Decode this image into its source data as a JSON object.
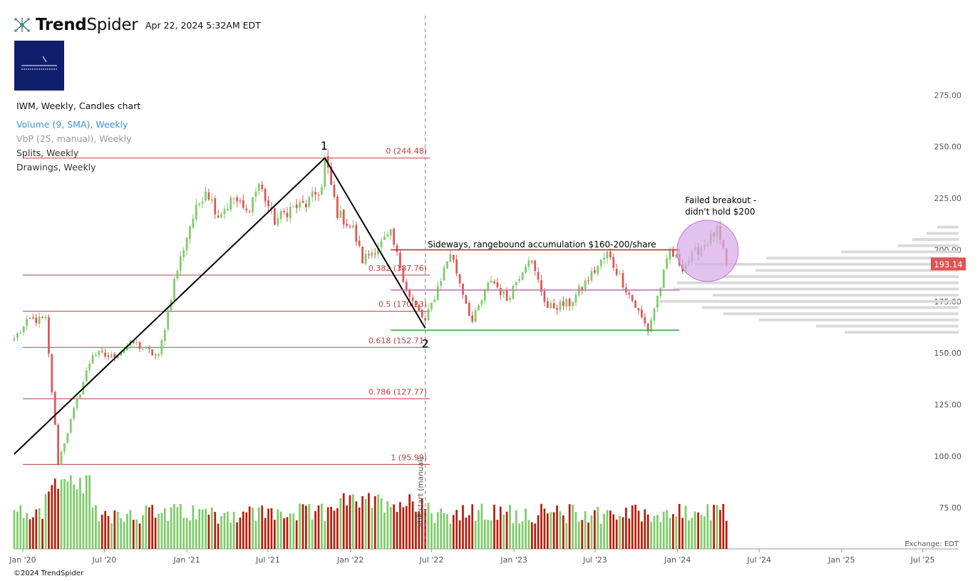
{
  "header": {
    "brand_bold": "Trend",
    "brand_light": "Spider",
    "timestamp": "Apr 22, 2024 5:32AM EDT"
  },
  "legend": [
    {
      "text": "IWM, Weekly, Candles chart",
      "color": "#111111"
    },
    {
      "text": "Volume (9, SMA), Weekly",
      "color": "#3f8fd6"
    },
    {
      "text": "VbP (25, manual), Weekly",
      "color": "#999999"
    },
    {
      "text": "Splits, Weekly",
      "color": "#333333"
    },
    {
      "text": "Drawings, Weekly",
      "color": "#333333"
    }
  ],
  "footer": {
    "copyright": "©2024 TrendSpider",
    "exchange": "Exchange: EDT"
  },
  "colors": {
    "up": "#7ecb6a",
    "down": "#e05454",
    "volume_up": "#7ecb6a",
    "volume_down": "#b51e0a",
    "fib_line": "#b04040",
    "last_price_badge": "#e05454",
    "vbp_bar": "#d9d9d9",
    "resistance": "#b83232",
    "midline": "#c471c4",
    "support": "#4aa84a",
    "highlight_circle": "#d8a8e8",
    "logo_box": "#0f1f6e"
  },
  "chart_data": {
    "type": "candlestick",
    "ticker": "IWM",
    "timeframe": "Weekly",
    "x_ticks": [
      "Jan '20",
      "Jul '20",
      "Jan '21",
      "Jul '21",
      "Jan '22",
      "Jul '22",
      "Jan '23",
      "Jul '23",
      "Jan '24",
      "Jul '24",
      "Jan '25",
      "Jul '25"
    ],
    "y_ticks": [
      "75.00",
      "100.00",
      "125.00",
      "150.00",
      "175.00",
      "200.00",
      "225.00",
      "250.00",
      "275.00"
    ],
    "ylim": [
      55,
      290
    ],
    "last_price": 193.14,
    "last_price_label": "193.14",
    "anchors": [
      {
        "date": "2019-12-13",
        "price": 157
      },
      {
        "date": "2020-01-17",
        "price": 166
      },
      {
        "date": "2020-02-21",
        "price": 166
      },
      {
        "date": "2020-03-20",
        "price": 97
      },
      {
        "date": "2020-04-24",
        "price": 122
      },
      {
        "date": "2020-06-05",
        "price": 150
      },
      {
        "date": "2020-07-17",
        "price": 148
      },
      {
        "date": "2020-09-04",
        "price": 155
      },
      {
        "date": "2020-10-30",
        "price": 148
      },
      {
        "date": "2020-12-04",
        "price": 185
      },
      {
        "date": "2021-01-08",
        "price": 212
      },
      {
        "date": "2021-02-12",
        "price": 230
      },
      {
        "date": "2021-03-12",
        "price": 217
      },
      {
        "date": "2021-04-16",
        "price": 225
      },
      {
        "date": "2021-05-14",
        "price": 218
      },
      {
        "date": "2021-06-11",
        "price": 232
      },
      {
        "date": "2021-07-16",
        "price": 214
      },
      {
        "date": "2021-08-20",
        "price": 220
      },
      {
        "date": "2021-09-24",
        "price": 222
      },
      {
        "date": "2021-10-29",
        "price": 230
      },
      {
        "date": "2021-11-05",
        "price": 244
      },
      {
        "date": "2021-12-03",
        "price": 218
      },
      {
        "date": "2022-01-07",
        "price": 210
      },
      {
        "date": "2022-01-28",
        "price": 195
      },
      {
        "date": "2022-03-04",
        "price": 202
      },
      {
        "date": "2022-04-01",
        "price": 207
      },
      {
        "date": "2022-05-13",
        "price": 177
      },
      {
        "date": "2022-06-17",
        "price": 165
      },
      {
        "date": "2022-08-12",
        "price": 199
      },
      {
        "date": "2022-09-30",
        "price": 165
      },
      {
        "date": "2022-11-11",
        "price": 186
      },
      {
        "date": "2022-12-16",
        "price": 176
      },
      {
        "date": "2023-02-03",
        "price": 197
      },
      {
        "date": "2023-03-17",
        "price": 172
      },
      {
        "date": "2023-05-05",
        "price": 174
      },
      {
        "date": "2023-07-28",
        "price": 198
      },
      {
        "date": "2023-08-25",
        "price": 187
      },
      {
        "date": "2023-10-27",
        "price": 161
      },
      {
        "date": "2023-12-15",
        "price": 199
      },
      {
        "date": "2024-01-12",
        "price": 192
      },
      {
        "date": "2024-02-02",
        "price": 197
      },
      {
        "date": "2024-03-29",
        "price": 209
      },
      {
        "date": "2024-04-19",
        "price": 193
      }
    ],
    "volume_ylim": [
      0,
      80
    ],
    "volume_profile": [
      {
        "price": 211,
        "value": 30
      },
      {
        "price": 208,
        "value": 45
      },
      {
        "price": 205,
        "value": 65
      },
      {
        "price": 202,
        "value": 85
      },
      {
        "price": 199,
        "value": 165
      },
      {
        "price": 196,
        "value": 270
      },
      {
        "price": 193,
        "value": 370
      },
      {
        "price": 190,
        "value": 285
      },
      {
        "price": 187,
        "value": 330
      },
      {
        "price": 184,
        "value": 395
      },
      {
        "price": 181,
        "value": 400
      },
      {
        "price": 178,
        "value": 345
      },
      {
        "price": 175,
        "value": 420
      },
      {
        "price": 172,
        "value": 360
      },
      {
        "price": 169,
        "value": 330
      },
      {
        "price": 166,
        "value": 280
      },
      {
        "price": 163,
        "value": 200
      },
      {
        "price": 160,
        "value": 160
      }
    ],
    "fibonacci": [
      {
        "label": "0 (244.48)",
        "price": 244.48
      },
      {
        "label": "0.382 (187.76)",
        "price": 187.76
      },
      {
        "label": "0.5 (170.23)",
        "price": 170.23
      },
      {
        "label": "0.618 (152.71)",
        "price": 152.71
      },
      {
        "label": "0.786 (127.77)",
        "price": 127.77
      },
      {
        "label": "1 (95.99)",
        "price": 95.99
      }
    ],
    "drawn_lines": [
      {
        "name": "rise-trendline",
        "from": {
          "date": "2019-12-13",
          "price": 101
        },
        "to": {
          "date": "2021-11-05",
          "price": 244.5
        }
      },
      {
        "name": "fall-trendline",
        "from": {
          "date": "2021-11-05",
          "price": 244.5
        },
        "to": {
          "date": "2022-06-17",
          "price": 162
        }
      },
      {
        "name": "resistance-line",
        "from": {
          "date": "2022-04-01",
          "price": 200
        },
        "to": {
          "date": "2024-01-05",
          "price": 200
        }
      },
      {
        "name": "midline",
        "from": {
          "date": "2022-04-01",
          "price": 180.5
        },
        "to": {
          "date": "2024-01-05",
          "price": 180.5
        }
      },
      {
        "name": "support-line",
        "from": {
          "date": "2022-04-01",
          "price": 161
        },
        "to": {
          "date": "2024-01-05",
          "price": 161
        }
      }
    ],
    "annotations": [
      {
        "text": "1",
        "date": "2021-11-05",
        "price": 251
      },
      {
        "text": "2",
        "date": "2022-06-17",
        "price": 155
      },
      {
        "text": "Sideways, rangebound accumulation $160-200/share",
        "date": "2022-06-24",
        "price": 202.5
      },
      {
        "text": "Failed breakout -",
        "date": "2024-01-05",
        "price": 224
      },
      {
        "text": "didn't hold $200",
        "date": "2024-01-05",
        "price": 218.5
      },
      {
        "text": "VbP start (manual)",
        "date": "2022-06-17",
        "price": 70
      }
    ]
  }
}
